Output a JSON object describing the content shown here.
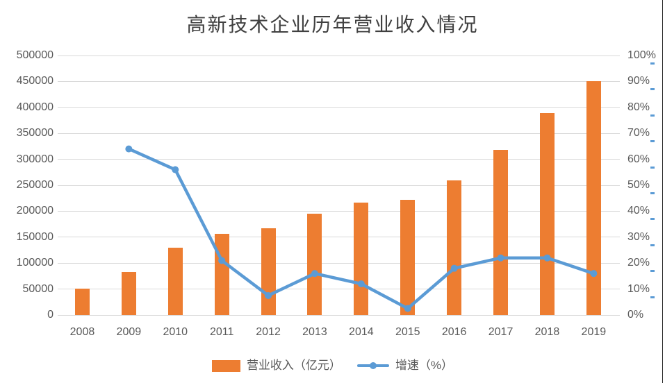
{
  "title": "高新技术企业历年营业收入情况",
  "legend": {
    "revenue_label": "营业收入（亿元）",
    "growth_label": "增速（%）"
  },
  "colors": {
    "bar": "#ed7d31",
    "line": "#5b9bd5",
    "gridline": "#d9d9d9",
    "axis_text": "#595959",
    "title_text": "#404040"
  },
  "chart_data": {
    "type": "bar",
    "subtype": "bar-line-combo",
    "title": "高新技术企业历年营业收入情况",
    "categories": [
      "2008",
      "2009",
      "2010",
      "2011",
      "2012",
      "2013",
      "2014",
      "2015",
      "2016",
      "2017",
      "2018",
      "2019"
    ],
    "series": [
      {
        "name": "营业收入（亿元）",
        "type": "bar",
        "axis": "left",
        "color": "#ed7d31",
        "values": [
          51000,
          83000,
          130000,
          156000,
          167000,
          195000,
          216000,
          222000,
          260000,
          318000,
          389000,
          450000
        ]
      },
      {
        "name": "增速（%）",
        "type": "line",
        "axis": "right",
        "color": "#5b9bd5",
        "values": [
          null,
          64,
          56,
          21,
          7.5,
          16,
          12,
          2.5,
          18,
          22,
          22,
          16
        ]
      }
    ],
    "left_axis": {
      "min": 0,
      "max": 500000,
      "step": 50000,
      "tick_labels": [
        "0",
        "50000",
        "100000",
        "150000",
        "200000",
        "250000",
        "300000",
        "350000",
        "400000",
        "450000",
        "500000"
      ]
    },
    "right_axis": {
      "min": 0,
      "max": 100,
      "step": 10,
      "tick_labels": [
        "0%",
        "10%",
        "20%",
        "30%",
        "40%",
        "50%",
        "60%",
        "70%",
        "80%",
        "90%",
        "100%"
      ]
    },
    "grid": true,
    "legend_position": "bottom"
  }
}
